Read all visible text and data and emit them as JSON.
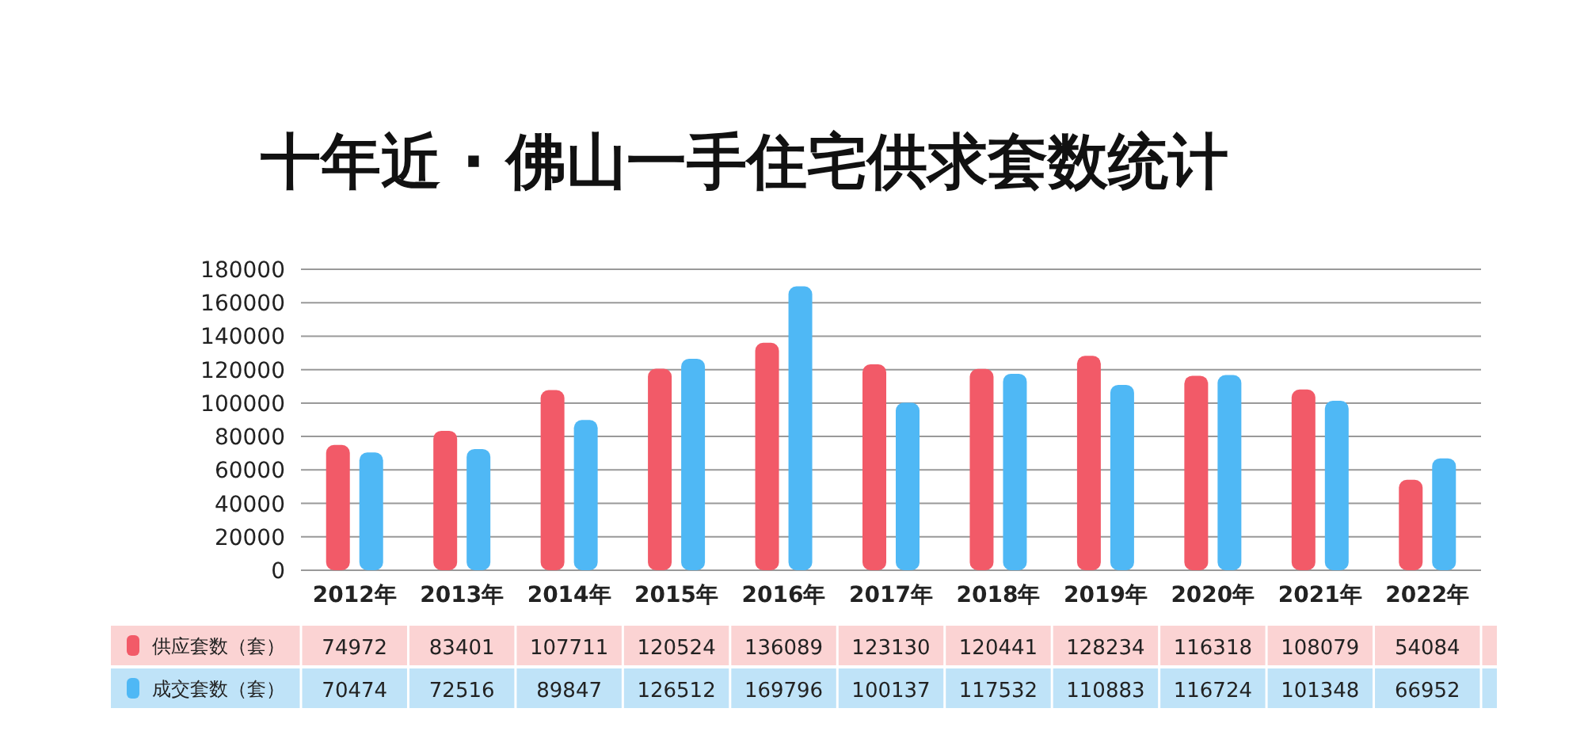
{
  "chart_data": {
    "type": "bar",
    "title": "十年近 · 佛山一手住宅供求套数统计",
    "categories": [
      "2012年",
      "2013年",
      "2014年",
      "2015年",
      "2016年",
      "2017年",
      "2018年",
      "2019年",
      "2020年",
      "2021年",
      "2022年"
    ],
    "series": [
      {
        "name": "供应套数（套）",
        "color": "#f25a68",
        "values": [
          74972,
          83401,
          107711,
          120524,
          136089,
          123130,
          120441,
          128234,
          116318,
          108079,
          54084
        ]
      },
      {
        "name": "成交套数（套）",
        "color": "#4fb8f5",
        "values": [
          70474,
          72516,
          89847,
          126512,
          169796,
          100137,
          117532,
          110883,
          116724,
          101348,
          66952
        ]
      }
    ],
    "ylim": [
      0,
      180000
    ],
    "yticks": [
      0,
      20000,
      40000,
      60000,
      80000,
      100000,
      120000,
      140000,
      160000,
      180000
    ],
    "grid": "y",
    "legend": "bottom",
    "data_labels": true
  }
}
